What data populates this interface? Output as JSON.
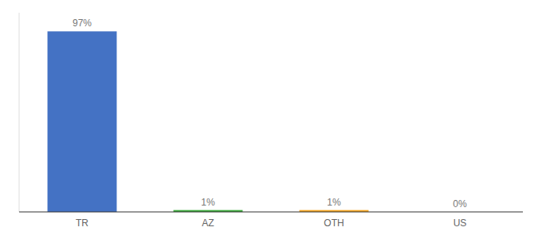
{
  "chart_data": {
    "type": "bar",
    "categories": [
      "TR",
      "AZ",
      "OTH",
      "US"
    ],
    "values": [
      97,
      1,
      1,
      0
    ],
    "value_labels": [
      "97%",
      "1%",
      "1%",
      "0%"
    ],
    "data_labels": true,
    "colors": [
      "#4472c4",
      "#3dab3d",
      "#f5a623",
      "#4472c4"
    ],
    "ylim": [
      0,
      107
    ],
    "tick_labels": "x"
  }
}
